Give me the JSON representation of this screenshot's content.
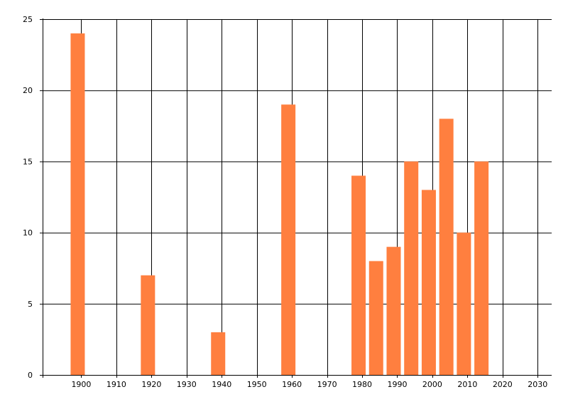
{
  "chart_data": {
    "type": "bar",
    "title": "",
    "xlabel": "",
    "ylabel": "",
    "x": [
      1900,
      1920,
      1940,
      1960,
      1980,
      1985,
      1990,
      1995,
      2000,
      2005,
      2010,
      2015
    ],
    "values": [
      24,
      7,
      3,
      19,
      14,
      8,
      9,
      15,
      13,
      18,
      10,
      15
    ],
    "xlim": [
      1890,
      2035
    ],
    "ylim": [
      0,
      25
    ],
    "xticks": [
      1900,
      1910,
      1920,
      1930,
      1940,
      1950,
      1960,
      1970,
      1980,
      1990,
      2000,
      2010,
      2020,
      2030
    ],
    "yticks": [
      0,
      5,
      10,
      15,
      20,
      25
    ],
    "grid": true,
    "legend": "none",
    "bar_color": "#FF7F3F",
    "grid_color": "#000000"
  }
}
